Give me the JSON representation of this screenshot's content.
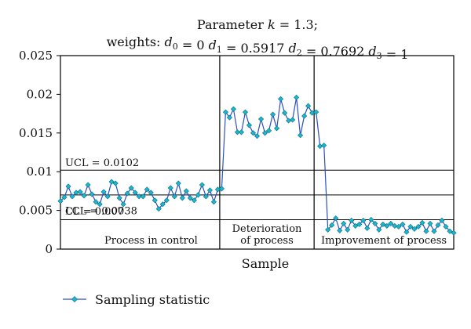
{
  "chart_data": {
    "type": "line",
    "title_line1": "Parameter k = 1.3;",
    "title_line2": "weights: d0 = 0  d1 = 0.5917  d2 = 0.7692  d3 = 1",
    "xlabel": "Sample",
    "ylabel": "",
    "ylim": [
      0,
      0.025
    ],
    "yticks": [
      0,
      0.005,
      0.01,
      0.015,
      0.02,
      0.025
    ],
    "ytick_labels": [
      "0",
      "0.005",
      "0.01",
      "0.015",
      "0.02",
      "0.025"
    ],
    "grid": false,
    "legend_position": "bottom-left",
    "colors": {
      "line": "#2b4fc4",
      "marker": "#1ab8cc",
      "rule": "#000000"
    },
    "control_limits": [
      {
        "label": "UCL = 0.0102",
        "value": 0.0102
      },
      {
        "label": "CL = 0.007",
        "value": 0.007
      },
      {
        "label": "LCL = 0.0038",
        "value": 0.0038
      }
    ],
    "phase_boundaries": [
      41,
      65
    ],
    "phases": [
      {
        "label_lines": [
          "Process in control"
        ]
      },
      {
        "label_lines": [
          "Deterioration",
          "of process"
        ]
      },
      {
        "label_lines": [
          "Improvement of process"
        ]
      }
    ],
    "series": [
      {
        "name": "Sampling statistic",
        "x": [
          1,
          2,
          3,
          4,
          5,
          6,
          7,
          8,
          9,
          10,
          11,
          12,
          13,
          14,
          15,
          16,
          17,
          18,
          19,
          20,
          21,
          22,
          23,
          24,
          25,
          26,
          27,
          28,
          29,
          30,
          31,
          32,
          33,
          34,
          35,
          36,
          37,
          38,
          39,
          40,
          41,
          42,
          43,
          44,
          45,
          46,
          47,
          48,
          49,
          50,
          51,
          52,
          53,
          54,
          55,
          56,
          57,
          58,
          59,
          60,
          61,
          62,
          63,
          64,
          65,
          66,
          67,
          68,
          69,
          70,
          71,
          72,
          73,
          74,
          75,
          76,
          77,
          78,
          79,
          80,
          81,
          82,
          83,
          84,
          85,
          86,
          87,
          88,
          89,
          90,
          91,
          92,
          93,
          94,
          95,
          96,
          97,
          98,
          99,
          100,
          101
        ],
        "values": [
          0.0062,
          0.0067,
          0.0081,
          0.0068,
          0.0073,
          0.0074,
          0.0069,
          0.0083,
          0.0071,
          0.0061,
          0.0058,
          0.0074,
          0.0068,
          0.0087,
          0.0085,
          0.0066,
          0.0058,
          0.0072,
          0.0079,
          0.0073,
          0.0068,
          0.0068,
          0.0077,
          0.0073,
          0.0063,
          0.0052,
          0.0058,
          0.0063,
          0.0079,
          0.0068,
          0.0085,
          0.0066,
          0.0075,
          0.0066,
          0.0063,
          0.007,
          0.0083,
          0.0068,
          0.0076,
          0.0061,
          0.0077,
          0.0078,
          0.0177,
          0.017,
          0.0181,
          0.0151,
          0.0151,
          0.0177,
          0.016,
          0.015,
          0.0146,
          0.0168,
          0.015,
          0.0153,
          0.0174,
          0.0156,
          0.0194,
          0.0176,
          0.0166,
          0.0167,
          0.0196,
          0.0147,
          0.0172,
          0.0185,
          0.0176,
          0.0177,
          0.0133,
          0.0134,
          0.0025,
          0.0031,
          0.004,
          0.0024,
          0.0033,
          0.0025,
          0.0037,
          0.003,
          0.0032,
          0.0037,
          0.0027,
          0.0038,
          0.0033,
          0.0025,
          0.0032,
          0.003,
          0.0033,
          0.003,
          0.0029,
          0.0032,
          0.0022,
          0.0029,
          0.0026,
          0.0029,
          0.0034,
          0.0023,
          0.0033,
          0.0023,
          0.0031,
          0.0037,
          0.0029,
          0.0023,
          0.0021
        ]
      }
    ]
  }
}
